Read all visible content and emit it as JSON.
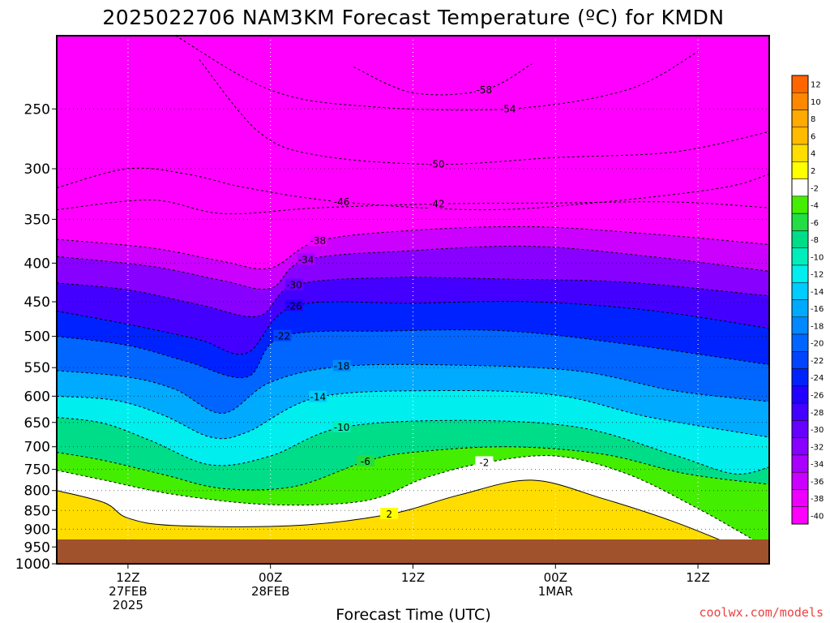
{
  "chart_data": {
    "type": "heatmap",
    "title": "2025022706 NAM3KM Forecast Temperature (ºC) for KMDN",
    "xlabel": "Forecast Time (UTC)",
    "ylabel": "",
    "y_scale": "log",
    "y_inverted": true,
    "y_ticks": [
      250,
      300,
      350,
      400,
      450,
      500,
      550,
      600,
      650,
      700,
      750,
      800,
      850,
      900,
      950,
      1000
    ],
    "ylim": [
      1000,
      200
    ],
    "x_ticks": [
      {
        "hour": 6,
        "lines": [
          "12Z",
          "27FEB",
          "2025"
        ]
      },
      {
        "hour": 18,
        "lines": [
          "00Z",
          "28FEB"
        ]
      },
      {
        "hour": 30,
        "lines": [
          "12Z"
        ]
      },
      {
        "hour": 42,
        "lines": [
          "00Z",
          "1MAR"
        ]
      },
      {
        "hour": 54,
        "lines": [
          "12Z"
        ]
      }
    ],
    "xlim": [
      0,
      60
    ],
    "grid": true,
    "colorbar": {
      "labels": [
        "12",
        "10",
        "8",
        "6",
        "4",
        "2",
        "-2",
        "-4",
        "-6",
        "-8",
        "-10",
        "-12",
        "-14",
        "-16",
        "-18",
        "-20",
        "-22",
        "-24",
        "-26",
        "-28",
        "-30",
        "-32",
        "-34",
        "-36",
        "-38",
        "-40"
      ],
      "colors": [
        "#ff6600",
        "#ff8800",
        "#ffaa00",
        "#ffbb00",
        "#ffdd00",
        "#ffff00",
        "#ffffff",
        "#44ee00",
        "#22dd44",
        "#00dd88",
        "#00eebb",
        "#00eeee",
        "#00ccff",
        "#00aaff",
        "#0088ff",
        "#0066ff",
        "#0044ff",
        "#0022ff",
        "#2200ff",
        "#4400ff",
        "#6600ff",
        "#8800ff",
        "#aa00ff",
        "#cc00ff",
        "#ee00ff",
        "#ff00ff"
      ]
    },
    "isotherms": [
      {
        "label": "-58",
        "points": [
          [
            25,
            220
          ],
          [
            30,
            238
          ],
          [
            36,
            236
          ],
          [
            40,
            218
          ]
        ]
      },
      {
        "label": "-54",
        "points": [
          [
            10,
            200
          ],
          [
            18,
            236
          ],
          [
            26,
            248
          ],
          [
            38,
            250
          ],
          [
            48,
            236
          ],
          [
            54,
            210
          ]
        ]
      },
      {
        "label": "-50",
        "points": [
          [
            12,
            215
          ],
          [
            17,
            268
          ],
          [
            22,
            288
          ],
          [
            32,
            296
          ],
          [
            42,
            290
          ],
          [
            52,
            285
          ],
          [
            60,
            268
          ]
        ]
      },
      {
        "label": "-46",
        "points": [
          [
            0,
            318
          ],
          [
            6,
            300
          ],
          [
            11,
            305
          ],
          [
            16,
            318
          ],
          [
            24,
            332
          ],
          [
            36,
            340
          ],
          [
            46,
            332
          ],
          [
            56,
            318
          ],
          [
            60,
            305
          ]
        ]
      },
      {
        "label": "-42",
        "points": [
          [
            0,
            340
          ],
          [
            8,
            330
          ],
          [
            14,
            344
          ],
          [
            22,
            338
          ],
          [
            32,
            334
          ],
          [
            42,
            333
          ],
          [
            52,
            332
          ],
          [
            60,
            338
          ]
        ]
      },
      {
        "label": "-38",
        "points": [
          [
            0,
            372
          ],
          [
            8,
            382
          ],
          [
            14,
            398
          ],
          [
            18,
            406
          ],
          [
            22,
            374
          ],
          [
            30,
            362
          ],
          [
            40,
            358
          ],
          [
            50,
            366
          ],
          [
            60,
            378
          ]
        ]
      },
      {
        "label": "-34",
        "points": [
          [
            0,
            392
          ],
          [
            8,
            404
          ],
          [
            14,
            422
          ],
          [
            18,
            432
          ],
          [
            21,
            396
          ],
          [
            30,
            385
          ],
          [
            40,
            380
          ],
          [
            50,
            392
          ],
          [
            60,
            410
          ]
        ]
      },
      {
        "label": "-30",
        "points": [
          [
            0,
            425
          ],
          [
            6,
            434
          ],
          [
            12,
            454
          ],
          [
            17,
            470
          ],
          [
            20,
            428
          ],
          [
            28,
            418
          ],
          [
            38,
            420
          ],
          [
            48,
            424
          ],
          [
            60,
            442
          ]
        ]
      },
      {
        "label": "-26",
        "points": [
          [
            0,
            463
          ],
          [
            6,
            482
          ],
          [
            12,
            505
          ],
          [
            16,
            526
          ],
          [
            20,
            456
          ],
          [
            30,
            452
          ],
          [
            40,
            450
          ],
          [
            50,
            462
          ],
          [
            60,
            488
          ]
        ]
      },
      {
        "label": "-22",
        "points": [
          [
            0,
            500
          ],
          [
            6,
            514
          ],
          [
            11,
            540
          ],
          [
            16,
            566
          ],
          [
            19,
            500
          ],
          [
            28,
            492
          ],
          [
            38,
            492
          ],
          [
            48,
            512
          ],
          [
            60,
            545
          ]
        ]
      },
      {
        "label": "-18",
        "points": [
          [
            0,
            555
          ],
          [
            6,
            566
          ],
          [
            10,
            588
          ],
          [
            14,
            632
          ],
          [
            18,
            575
          ],
          [
            24,
            548
          ],
          [
            34,
            546
          ],
          [
            44,
            556
          ],
          [
            52,
            590
          ],
          [
            60,
            610
          ]
        ]
      },
      {
        "label": "-14",
        "points": [
          [
            0,
            600
          ],
          [
            5,
            608
          ],
          [
            9,
            636
          ],
          [
            13,
            680
          ],
          [
            16,
            670
          ],
          [
            22,
            602
          ],
          [
            32,
            590
          ],
          [
            42,
            598
          ],
          [
            50,
            640
          ],
          [
            60,
            680
          ]
        ]
      },
      {
        "label": "-10",
        "points": [
          [
            0,
            640
          ],
          [
            4,
            652
          ],
          [
            8,
            688
          ],
          [
            13,
            740
          ],
          [
            18,
            720
          ],
          [
            24,
            660
          ],
          [
            34,
            646
          ],
          [
            44,
            660
          ],
          [
            52,
            718
          ],
          [
            57,
            760
          ],
          [
            60,
            745
          ]
        ]
      },
      {
        "label": "-6",
        "points": [
          [
            0,
            712
          ],
          [
            4,
            730
          ],
          [
            9,
            762
          ],
          [
            14,
            795
          ],
          [
            20,
            790
          ],
          [
            26,
            732
          ],
          [
            30,
            712
          ],
          [
            38,
            700
          ],
          [
            46,
            716
          ],
          [
            53,
            760
          ],
          [
            60,
            785
          ]
        ]
      },
      {
        "label": "-2",
        "points": [
          [
            0,
            752
          ],
          [
            4,
            775
          ],
          [
            10,
            810
          ],
          [
            18,
            835
          ],
          [
            26,
            825
          ],
          [
            31,
            770
          ],
          [
            36,
            735
          ],
          [
            42,
            720
          ],
          [
            48,
            760
          ],
          [
            54,
            845
          ],
          [
            59,
            935
          ],
          [
            60,
            945
          ]
        ]
      },
      {
        "label": "2",
        "points": [
          [
            0,
            800
          ],
          [
            4,
            830
          ],
          [
            6,
            870
          ],
          [
            10,
            890
          ],
          [
            20,
            890
          ],
          [
            28,
            860
          ],
          [
            34,
            810
          ],
          [
            40,
            775
          ],
          [
            46,
            820
          ],
          [
            52,
            880
          ],
          [
            58,
            960
          ]
        ]
      }
    ]
  },
  "watermark": "coolwx.com/models"
}
